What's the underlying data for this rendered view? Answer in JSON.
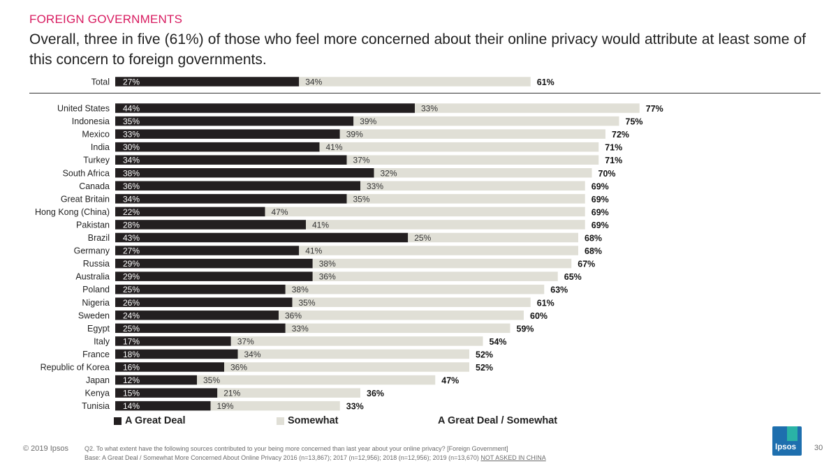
{
  "header": {
    "section": "FOREIGN GOVERNMENTS",
    "headline": "Overall, three in five (61%) of those who feel more concerned about their online privacy would attribute at least some of this concern to foreign governments."
  },
  "colors": {
    "great_deal": "#231f20",
    "somewhat": "#e0dfd6",
    "section_title": "#d81b60"
  },
  "chart_data": {
    "type": "bar",
    "orientation": "horizontal",
    "stacked": true,
    "value_unit": "%",
    "xlim": [
      0,
      100
    ],
    "series": [
      {
        "name": "A Great Deal",
        "color": "#231f20"
      },
      {
        "name": "Somewhat",
        "color": "#e0dfd6"
      },
      {
        "name": "A Great Deal / Somewhat",
        "color": null
      }
    ],
    "total": {
      "label": "Total",
      "great_deal": 27,
      "somewhat": 34,
      "combined": 61
    },
    "rows": [
      {
        "label": "United States",
        "great_deal": 44,
        "somewhat": 33,
        "combined": 77
      },
      {
        "label": "Indonesia",
        "great_deal": 35,
        "somewhat": 39,
        "combined": 75
      },
      {
        "label": "Mexico",
        "great_deal": 33,
        "somewhat": 39,
        "combined": 72
      },
      {
        "label": "India",
        "great_deal": 30,
        "somewhat": 41,
        "combined": 71
      },
      {
        "label": "Turkey",
        "great_deal": 34,
        "somewhat": 37,
        "combined": 71
      },
      {
        "label": "South Africa",
        "great_deal": 38,
        "somewhat": 32,
        "combined": 70
      },
      {
        "label": "Canada",
        "great_deal": 36,
        "somewhat": 33,
        "combined": 69
      },
      {
        "label": "Great Britain",
        "great_deal": 34,
        "somewhat": 35,
        "combined": 69
      },
      {
        "label": "Hong Kong (China)",
        "great_deal": 22,
        "somewhat": 47,
        "combined": 69
      },
      {
        "label": "Pakistan",
        "great_deal": 28,
        "somewhat": 41,
        "combined": 69
      },
      {
        "label": "Brazil",
        "great_deal": 43,
        "somewhat": 25,
        "combined": 68
      },
      {
        "label": "Germany",
        "great_deal": 27,
        "somewhat": 41,
        "combined": 68
      },
      {
        "label": "Russia",
        "great_deal": 29,
        "somewhat": 38,
        "combined": 67
      },
      {
        "label": "Australia",
        "great_deal": 29,
        "somewhat": 36,
        "combined": 65
      },
      {
        "label": "Poland",
        "great_deal": 25,
        "somewhat": 38,
        "combined": 63
      },
      {
        "label": "Nigeria",
        "great_deal": 26,
        "somewhat": 35,
        "combined": 61
      },
      {
        "label": "Sweden",
        "great_deal": 24,
        "somewhat": 36,
        "combined": 60
      },
      {
        "label": "Egypt",
        "great_deal": 25,
        "somewhat": 33,
        "combined": 59
      },
      {
        "label": "Italy",
        "great_deal": 17,
        "somewhat": 37,
        "combined": 54
      },
      {
        "label": "France",
        "great_deal": 18,
        "somewhat": 34,
        "combined": 52
      },
      {
        "label": "Republic of Korea",
        "great_deal": 16,
        "somewhat": 36,
        "combined": 52
      },
      {
        "label": "Japan",
        "great_deal": 12,
        "somewhat": 35,
        "combined": 47
      },
      {
        "label": "Kenya",
        "great_deal": 15,
        "somewhat": 21,
        "combined": 36
      },
      {
        "label": "Tunisia",
        "great_deal": 14,
        "somewhat": 19,
        "combined": 33
      }
    ]
  },
  "legend": {
    "great_deal": "A Great Deal",
    "somewhat": "Somewhat",
    "combined": "A Great Deal / Somewhat"
  },
  "footer": {
    "copyright": "© 2019 Ipsos",
    "question": "Q2. To what extent have the following sources contributed to your being more concerned than last year about your online privacy? [Foreign Government]",
    "base": "Base: A Great Deal / Somewhat More Concerned About Online Privacy 2016 (n=13,867); 2017 (n=12,956); 2018 (n=12,956); 2019 (n=13,670)",
    "not_asked": "NOT ASKED IN CHINA",
    "logo_text": "Ipsos",
    "page_number": "30"
  }
}
